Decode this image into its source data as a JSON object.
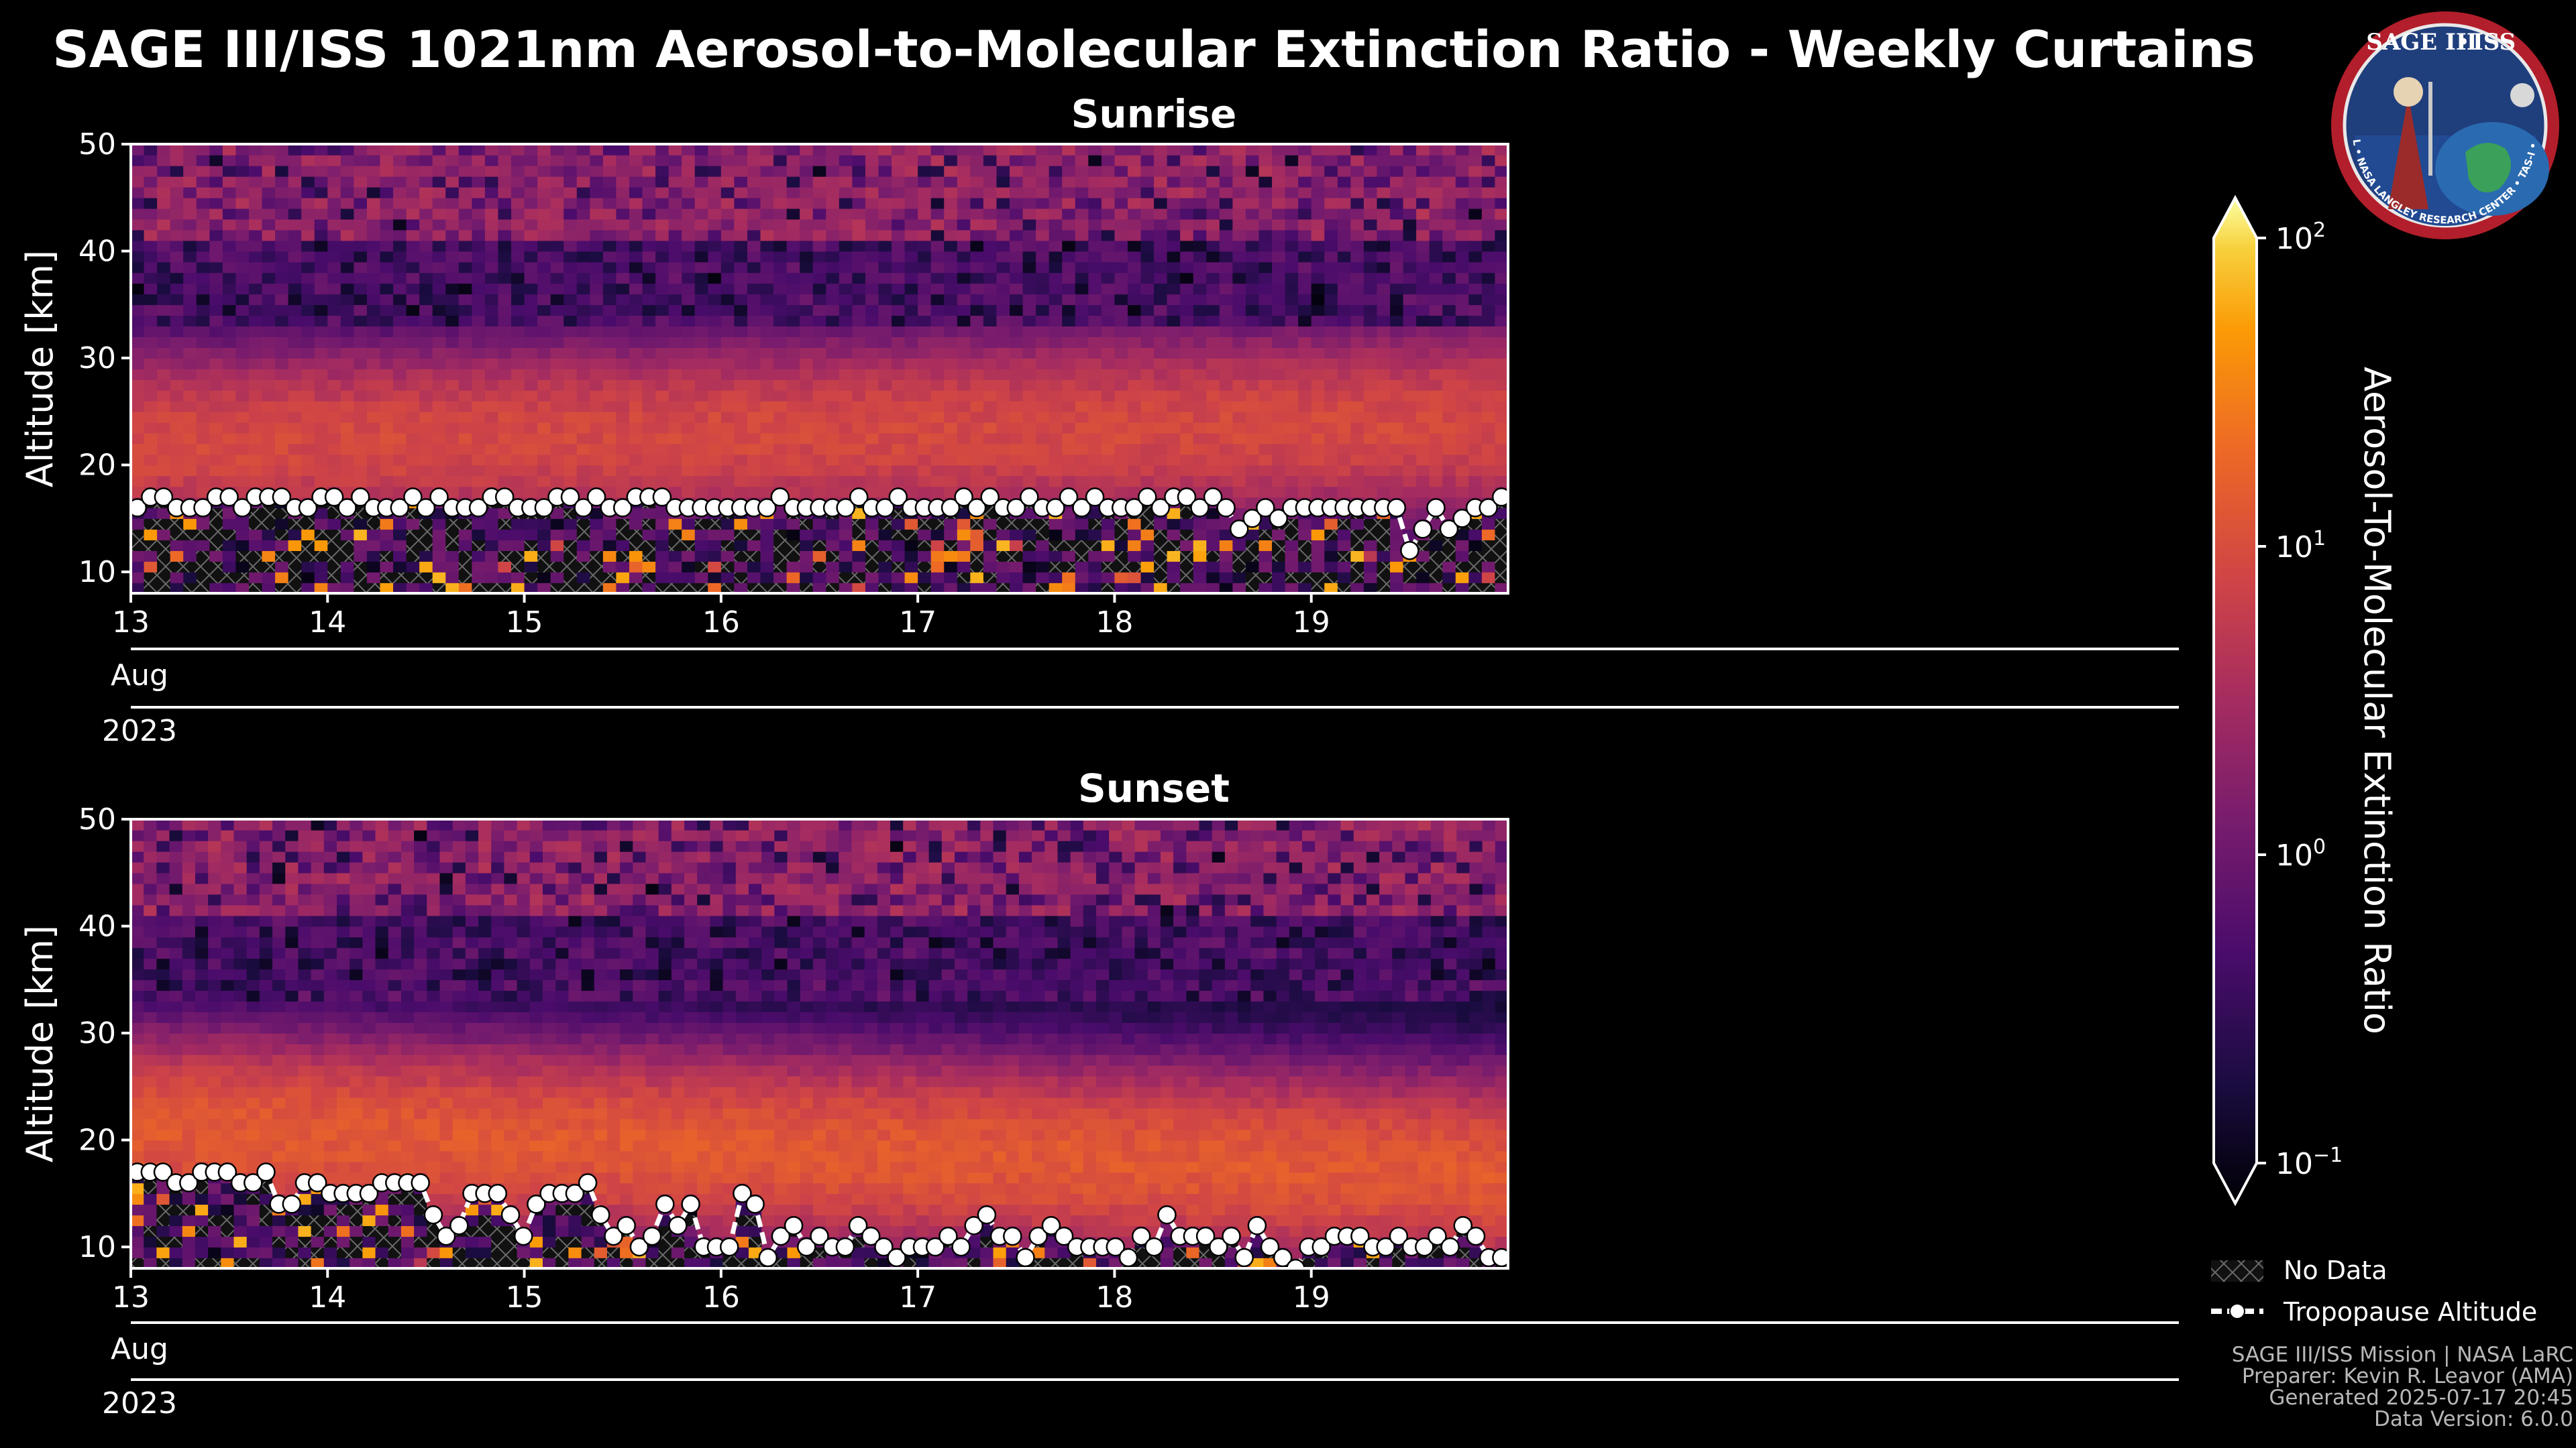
{
  "chart_data": {
    "type": "heatmap",
    "title": "SAGE III/ISS 1021nm Aerosol-to-Molecular Extinction Ratio - Weekly Curtains",
    "colorbar": {
      "label": "Aerosol-To-Molecular Extinction Ratio",
      "scale": "log",
      "range": [
        0.1,
        100
      ],
      "ticks": [
        {
          "base": "10",
          "exp": "2"
        },
        {
          "base": "10",
          "exp": "1"
        },
        {
          "base": "10",
          "exp": "0"
        },
        {
          "base": "10",
          "exp": "−1"
        }
      ],
      "colormap": "inferno"
    },
    "legend": [
      {
        "name": "No Data",
        "kind": "hatch"
      },
      {
        "name": "Tropopause Altitude",
        "kind": "line-marker"
      }
    ],
    "panels": [
      {
        "name": "Sunrise",
        "ylabel": "Altitude [km]",
        "ylim": [
          8,
          50
        ],
        "yticks": [
          "10",
          "20",
          "30",
          "40",
          "50"
        ],
        "xlim": [
          13.0,
          20.0
        ],
        "xticks": [
          "13",
          "14",
          "15",
          "16",
          "17",
          "18",
          "19"
        ],
        "month_label": "Aug",
        "year_label": "2023",
        "layer_peak_ratio": 8,
        "layer_center_km": [
          22,
          24
        ],
        "tropopause_km": [
          16,
          17,
          17,
          16,
          16,
          16,
          17,
          17,
          16,
          17,
          17,
          17,
          16,
          16,
          17,
          17,
          16,
          17,
          16,
          16,
          16,
          17,
          16,
          17,
          16,
          16,
          16,
          17,
          17,
          16,
          16,
          16,
          17,
          17,
          16,
          17,
          16,
          16,
          17,
          17,
          17,
          16,
          16,
          16,
          16,
          16,
          16,
          16,
          16,
          17,
          16,
          16,
          16,
          16,
          16,
          17,
          16,
          16,
          17,
          16,
          16,
          16,
          16,
          17,
          16,
          17,
          16,
          16,
          17,
          16,
          16,
          17,
          16,
          17,
          16,
          16,
          16,
          17,
          16,
          17,
          17,
          16,
          17,
          16,
          14,
          15,
          16,
          15,
          16,
          16,
          16,
          16,
          16,
          16,
          16,
          16,
          16,
          12,
          14,
          16,
          14,
          15,
          16,
          16,
          17
        ]
      },
      {
        "name": "Sunset",
        "ylabel": "Altitude [km]",
        "ylim": [
          8,
          50
        ],
        "yticks": [
          "10",
          "20",
          "30",
          "40",
          "50"
        ],
        "xlim": [
          13.0,
          20.0
        ],
        "xticks": [
          "13",
          "14",
          "15",
          "16",
          "17",
          "18",
          "19"
        ],
        "month_label": "Aug",
        "year_label": "2023",
        "layer_peak_ratio": 12,
        "layer_center_km": [
          21,
          17
        ],
        "tropopause_km": [
          17,
          17,
          17,
          16,
          16,
          17,
          17,
          17,
          16,
          16,
          17,
          14,
          14,
          16,
          16,
          15,
          15,
          15,
          15,
          16,
          16,
          16,
          16,
          13,
          11,
          12,
          15,
          15,
          15,
          13,
          11,
          14,
          15,
          15,
          15,
          16,
          13,
          11,
          12,
          10,
          11,
          14,
          12,
          14,
          10,
          10,
          10,
          15,
          14,
          9,
          11,
          12,
          10,
          11,
          10,
          10,
          12,
          11,
          10,
          9,
          10,
          10,
          10,
          11,
          10,
          12,
          13,
          11,
          11,
          9,
          11,
          12,
          11,
          10,
          10,
          10,
          10,
          9,
          11,
          10,
          13,
          11,
          11,
          11,
          10,
          11,
          9,
          12,
          10,
          9,
          8,
          10,
          10,
          11,
          11,
          11,
          10,
          10,
          11,
          10,
          10,
          11,
          10,
          12,
          11,
          9,
          9
        ]
      }
    ]
  },
  "logo": {
    "line1": "SAGE III",
    "line2": "ISS",
    "ring_text": "BALL • NASA LANGLEY RESEARCH CENTER • TAS-I • ESA"
  },
  "footer": {
    "line1": "SAGE III/ISS Mission | NASA LaRC",
    "line2": "Preparer: Kevin R. Leavor (AMA)",
    "line3": "Generated 2025-07-17 20:45",
    "line4": "Data Version: 6.0.0"
  }
}
